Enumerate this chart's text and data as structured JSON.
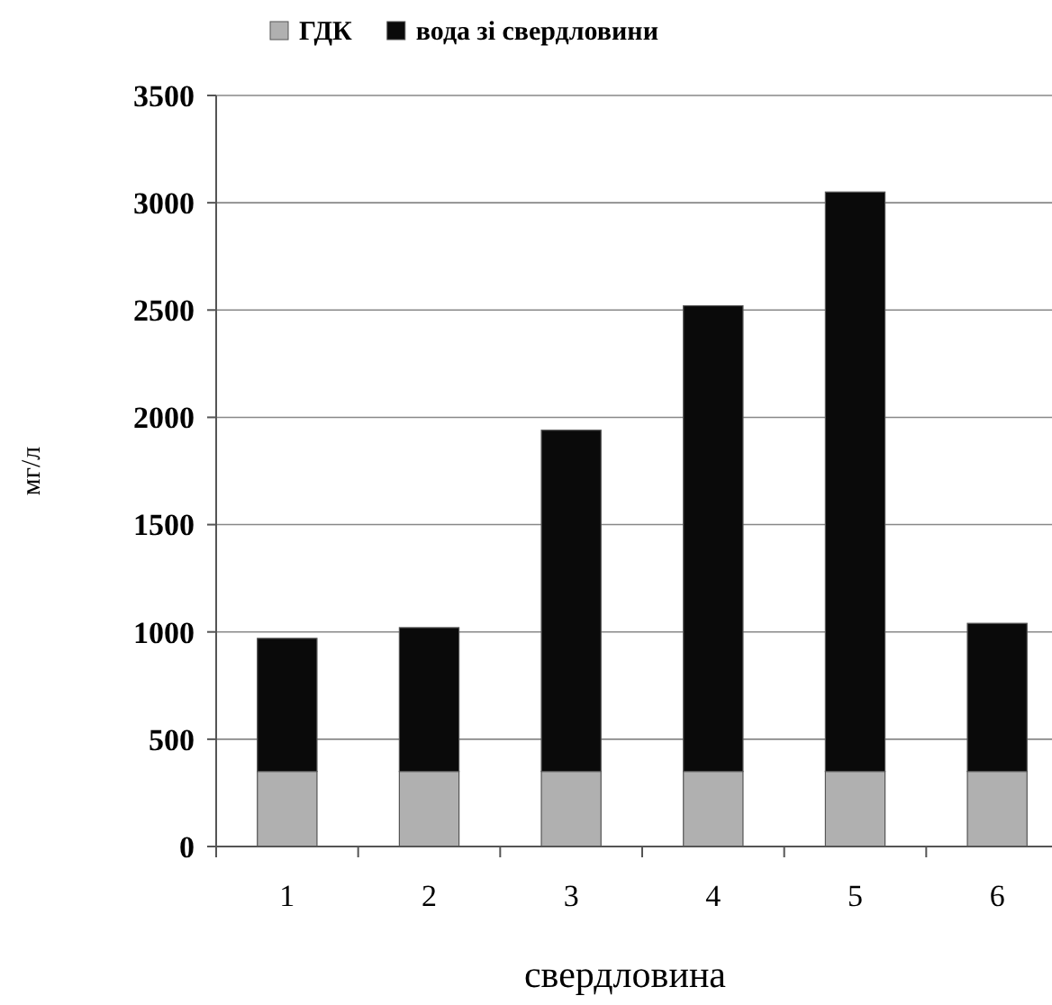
{
  "chart_data": {
    "type": "bar",
    "stacked": true,
    "categories": [
      "1",
      "2",
      "3",
      "4",
      "5",
      "6"
    ],
    "series": [
      {
        "name": "ГДК",
        "color": "#b0b0b0",
        "values": [
          350,
          350,
          350,
          350,
          350,
          350
        ]
      },
      {
        "name": "вода зі свердловини",
        "color": "#0a0a0a",
        "values": [
          620,
          670,
          1590,
          2170,
          2700,
          690
        ]
      }
    ],
    "ylim": [
      0,
      3500
    ],
    "yticks": [
      0,
      500,
      1000,
      1500,
      2000,
      2500,
      3000,
      3500
    ],
    "grid": "y",
    "legend": "top",
    "xlabel": "свердловина",
    "ylabel": "мг/л"
  }
}
